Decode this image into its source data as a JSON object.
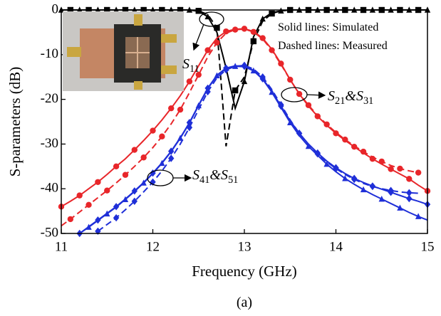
{
  "chart_data": {
    "type": "line",
    "xlabel": "Frequency (GHz)",
    "ylabel": "S-parameters (dB)",
    "caption": "(a)",
    "xlim": [
      11,
      15
    ],
    "xticks": [
      11,
      12,
      13,
      14,
      15
    ],
    "ylim": [
      -50,
      0
    ],
    "yticks": [
      -50,
      -40,
      -30,
      -20,
      -10,
      0
    ],
    "x": [
      11.0,
      11.1,
      11.2,
      11.3,
      11.4,
      11.5,
      11.6,
      11.7,
      11.8,
      11.9,
      12.0,
      12.1,
      12.2,
      12.3,
      12.4,
      12.5,
      12.6,
      12.7,
      12.8,
      12.9,
      13.0,
      13.1,
      13.2,
      13.3,
      13.4,
      13.5,
      13.6,
      13.7,
      13.8,
      13.9,
      14.0,
      14.1,
      14.2,
      14.3,
      14.4,
      14.5,
      14.6,
      14.7,
      14.8,
      14.9,
      15.0
    ],
    "series": [
      {
        "color": "#000000",
        "dash": false,
        "marker": "triangle",
        "values": [
          0,
          0,
          0,
          0,
          0,
          0,
          0,
          0,
          0,
          0,
          0,
          0,
          0,
          0,
          0,
          -0.3,
          -1.5,
          -5,
          -13,
          -22,
          -16,
          -6,
          -2,
          -0.6,
          -0.2,
          0,
          0,
          0,
          0,
          0,
          0,
          0,
          0,
          0,
          0,
          0,
          0,
          0,
          0,
          0,
          0
        ]
      },
      {
        "color": "#000000",
        "dash": true,
        "marker": "square",
        "values": [
          0,
          0,
          0,
          0,
          0,
          0,
          0,
          0,
          0,
          0,
          0,
          0,
          0,
          0,
          0,
          -0.2,
          -1,
          -4,
          -30.5,
          -18,
          -15,
          -7,
          -2.5,
          -0.8,
          -0.2,
          0,
          0,
          0,
          0,
          0,
          0,
          0,
          0,
          0,
          0,
          0,
          0,
          0,
          0,
          0,
          0
        ]
      },
      {
        "color": "#e8262a",
        "dash": false,
        "marker": "circle",
        "values": [
          -44,
          -42.8,
          -41.5,
          -40,
          -38.5,
          -36.8,
          -35,
          -33.3,
          -31.3,
          -29.2,
          -27,
          -24.6,
          -22,
          -19.2,
          -16,
          -12.5,
          -9,
          -6.3,
          -4.8,
          -4.3,
          -4.2,
          -4.8,
          -6.3,
          -8.8,
          -12,
          -15.6,
          -18.8,
          -21.5,
          -23.8,
          -25.8,
          -27.6,
          -29.2,
          -30.6,
          -32,
          -33.3,
          -34.5,
          -35.6,
          -36.7,
          -37.8,
          -39.2,
          -40.5
        ]
      },
      {
        "color": "#e8262a",
        "dash": true,
        "marker": "circle",
        "values": [
          -48.3,
          -46.8,
          -45.2,
          -43.6,
          -42,
          -40.4,
          -38.7,
          -36.9,
          -35,
          -33,
          -30.8,
          -28.3,
          -25.5,
          -22.3,
          -18.5,
          -14.5,
          -10.5,
          -7.3,
          -5.2,
          -4.4,
          -4.3,
          -4.9,
          -6.5,
          -9,
          -12.2,
          -15.6,
          -18.7,
          -21.3,
          -23.6,
          -25.6,
          -27.4,
          -29,
          -30.4,
          -31.7,
          -32.9,
          -33.9,
          -34.8,
          -35.5,
          -36,
          -36.4,
          null
        ]
      },
      {
        "color": "#1f2fd8",
        "dash": false,
        "marker": "diamond",
        "values": [
          null,
          null,
          -50,
          -48.5,
          -47,
          -45.5,
          -44,
          -42.3,
          -40.5,
          -38.6,
          -36.5,
          -34.2,
          -31.6,
          -28.6,
          -25.2,
          -21.3,
          -17.5,
          -14.6,
          -13,
          -12.5,
          -12.6,
          -13.5,
          -15.4,
          -18.2,
          -21.5,
          -24.8,
          -27.6,
          -30,
          -32,
          -33.8,
          -35.3,
          -36.6,
          -37.7,
          -38.6,
          -39.4,
          -40.1,
          -40.8,
          -41.5,
          -42.2,
          -42.8,
          -43.5
        ]
      },
      {
        "color": "#1f2fd8",
        "dash": false,
        "marker": "triangle",
        "values": [
          null,
          null,
          -50,
          -48.6,
          -47.1,
          -45.6,
          -44.1,
          -42.4,
          -40.6,
          -38.7,
          -36.6,
          -34.3,
          -31.7,
          -28.7,
          -25.3,
          -21.4,
          -17.6,
          -14.7,
          -13.1,
          -12.6,
          -12.7,
          -13.6,
          -15.5,
          -18.4,
          -21.8,
          -25.2,
          -28.1,
          -30.5,
          -32.5,
          -34.5,
          -36.2,
          -37.7,
          -39,
          -40.2,
          -41.3,
          -42.3,
          -43.3,
          -44.3,
          -45.3,
          -46.2,
          -47
        ]
      },
      {
        "color": "#1f2fd8",
        "dash": true,
        "marker": "diamond",
        "values": [
          null,
          null,
          null,
          null,
          -49.5,
          -48,
          -46.5,
          -44.7,
          -42.8,
          -40.7,
          -38.5,
          -36,
          -33.2,
          -30,
          -26.3,
          -22.3,
          -18.3,
          -15.2,
          -13.4,
          -12.6,
          -12.4,
          -13.2,
          -15,
          -17.8,
          -21.2,
          -24.6,
          -27.6,
          -30.1,
          -32.2,
          -34,
          -35.5,
          -36.8,
          -37.9,
          -38.8,
          -39.5,
          -40,
          -40.4,
          -40.7,
          -40.9,
          -41,
          null
        ]
      }
    ],
    "annotations": [
      {
        "parts": [
          "S",
          "11"
        ]
      },
      {
        "parts": [
          "S",
          "21",
          "&S",
          "31"
        ]
      },
      {
        "parts": [
          "S",
          "41",
          "&S",
          "51"
        ]
      },
      {
        "parts": [
          "Solid lines: Simulated"
        ]
      },
      {
        "parts": [
          "Dashed lines: Measured"
        ]
      }
    ]
  }
}
